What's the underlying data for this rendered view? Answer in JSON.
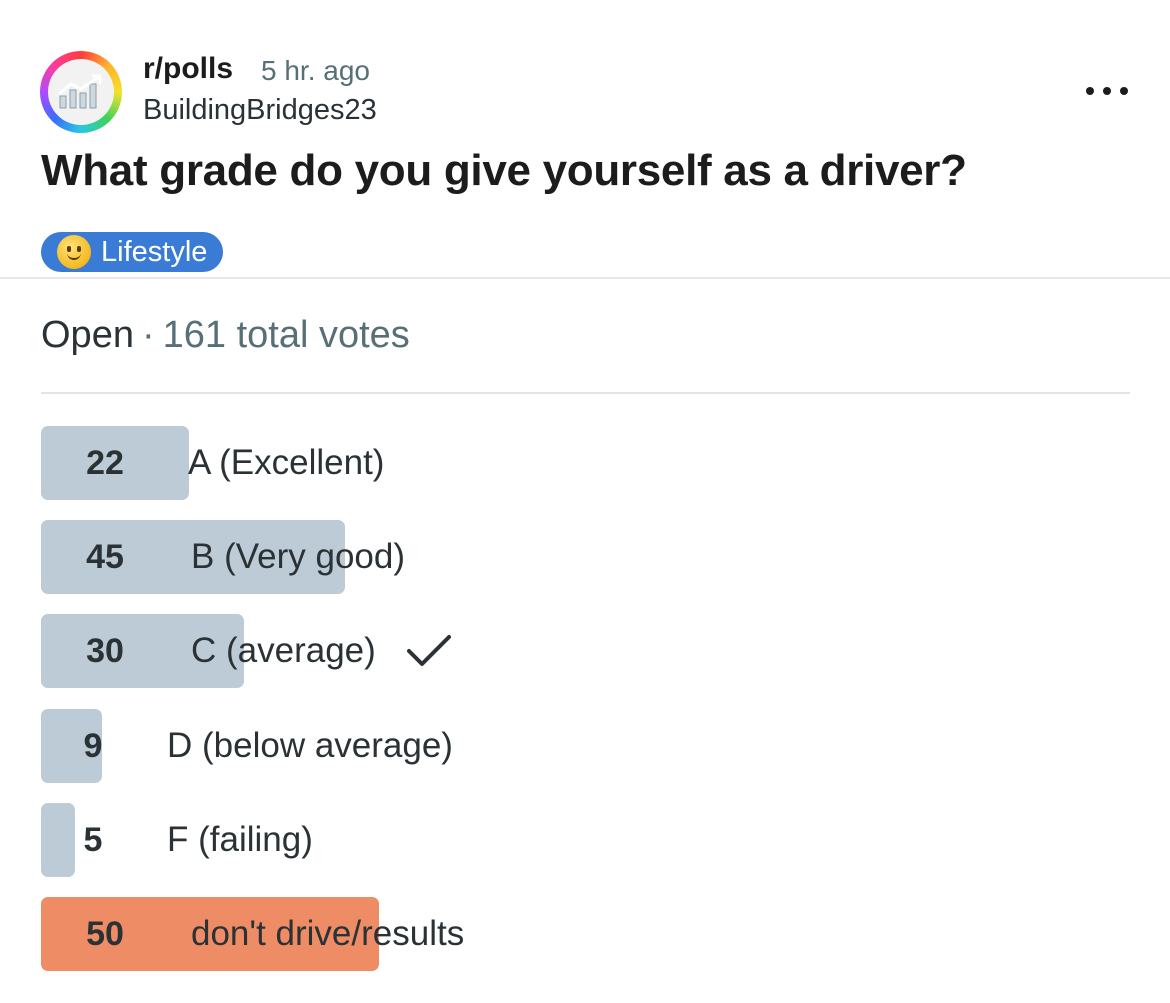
{
  "post": {
    "subreddit": "r/polls",
    "time": "5 hr. ago",
    "author": "BuildingBridges23",
    "title": "What grade do you give yourself as a driver?",
    "flair": {
      "emoji_icon": "slightly-smiling-face-icon",
      "label": "Lifestyle",
      "color": "#3a7bd5"
    }
  },
  "poll": {
    "status": "Open",
    "separator": "·",
    "total_votes_label": "161 total votes",
    "total_votes": 161,
    "options": [
      {
        "count": "22",
        "votes": 22,
        "label": "A (Excellent)",
        "selected": false,
        "leading": false
      },
      {
        "count": "45",
        "votes": 45,
        "label": "B (Very good)",
        "selected": false,
        "leading": false
      },
      {
        "count": "30",
        "votes": 30,
        "label": "C (average)",
        "selected": true,
        "leading": false
      },
      {
        "count": "9",
        "votes": 9,
        "label": "D (below average)",
        "selected": false,
        "leading": false
      },
      {
        "count": "5",
        "votes": 5,
        "label": "F (failing)",
        "selected": false,
        "leading": false
      },
      {
        "count": "50",
        "votes": 50,
        "label": "don't drive/results",
        "selected": false,
        "leading": true
      }
    ]
  },
  "colors": {
    "bar": "#bccbd5",
    "leading_bar": "#ee8c66",
    "text_muted": "#576f76"
  }
}
